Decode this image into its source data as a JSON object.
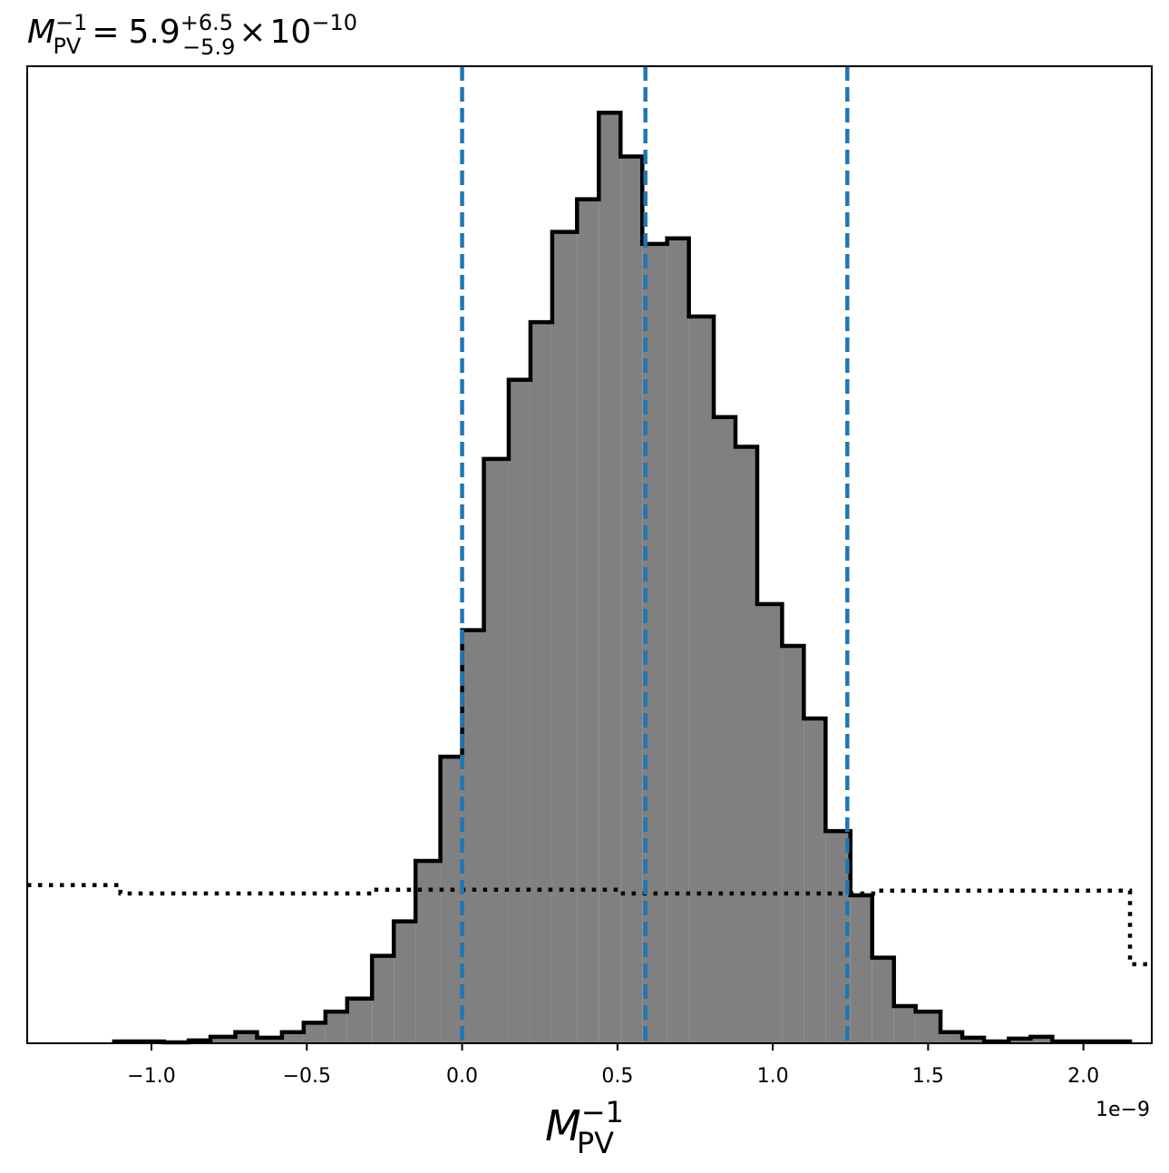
{
  "chart_data": {
    "type": "bar",
    "subtype": "histogram-step",
    "title": {
      "symbol": "M",
      "sub": "PV",
      "sup": "−1",
      "equals": "=",
      "value": "5.9",
      "err_plus": "+6.5",
      "err_minus": "−5.9",
      "times": "×",
      "base": "10",
      "exponent": "−10"
    },
    "xlabel": {
      "symbol": "M",
      "sub": "PV",
      "sup": "−1"
    },
    "offset_text": "1e−9",
    "xlim": [
      -1.4e-09,
      2.22e-09
    ],
    "ylim": [
      0,
      1.05
    ],
    "xticks": [
      -1e-09,
      -5e-10,
      0.0,
      5e-10,
      1e-09,
      1.5e-09,
      2e-09
    ],
    "xtick_labels": [
      "−1.0",
      "−0.5",
      "0.0",
      "0.5",
      "1.0",
      "1.5",
      "2.0"
    ],
    "yticks_visible": false,
    "grid": false,
    "bin_edges": [
      -1.12e-09,
      -1.04e-09,
      -9.6e-10,
      -8.8e-10,
      -8.1e-10,
      -7.3e-10,
      -6.6e-10,
      -5.8e-10,
      -5.1e-10,
      -4.4e-10,
      -3.7e-10,
      -2.9e-10,
      -2.2e-10,
      -1.5e-10,
      -7e-11,
      0.0,
      7e-11,
      1.5e-10,
      2.2e-10,
      2.9e-10,
      3.7e-10,
      4.4e-10,
      5.1e-10,
      5.8e-10,
      6.6e-10,
      7.3e-10,
      8.1e-10,
      8.8e-10,
      9.5e-10,
      1.03e-09,
      1.1e-09,
      1.17e-09,
      1.25e-09,
      1.32e-09,
      1.39e-09,
      1.46e-09,
      1.54e-09,
      1.61e-09,
      1.68e-09,
      1.76e-09,
      1.83e-09,
      1.9e-09,
      1.98e-09,
      2.05e-09,
      2.15e-09
    ],
    "posterior_counts": [
      0.002,
      0.002,
      0.001,
      0.003,
      0.007,
      0.012,
      0.006,
      0.012,
      0.022,
      0.034,
      0.048,
      0.094,
      0.131,
      0.196,
      0.308,
      0.444,
      0.628,
      0.713,
      0.775,
      0.872,
      0.907,
      1.0,
      0.953,
      0.859,
      0.865,
      0.781,
      0.673,
      0.641,
      0.472,
      0.427,
      0.349,
      0.228,
      0.159,
      0.092,
      0.04,
      0.034,
      0.012,
      0.006,
      0.002,
      0.005,
      0.007,
      0.002,
      0.002,
      0.002
    ],
    "prior_steps": [
      {
        "x0": -1.4e-09,
        "x1": -1.1e-09,
        "y": 0.17
      },
      {
        "x0": -1.1e-09,
        "x1": -2.9e-10,
        "y": 0.161
      },
      {
        "x0": -2.9e-10,
        "x1": 5.1e-10,
        "y": 0.165
      },
      {
        "x0": 5.1e-10,
        "x1": 1.34e-09,
        "y": 0.161
      },
      {
        "x0": 1.34e-09,
        "x1": 2.15e-09,
        "y": 0.164
      },
      {
        "x0": 2.15e-09,
        "x1": 2.22e-09,
        "y": 0.085
      }
    ],
    "quantile_lines": [
      0.0,
      5.9e-10,
      1.24e-09
    ],
    "colors": {
      "hist_fill": "#808080",
      "hist_edge": "#000000",
      "prior": "#000000",
      "quantile": "#1f77b4"
    }
  }
}
